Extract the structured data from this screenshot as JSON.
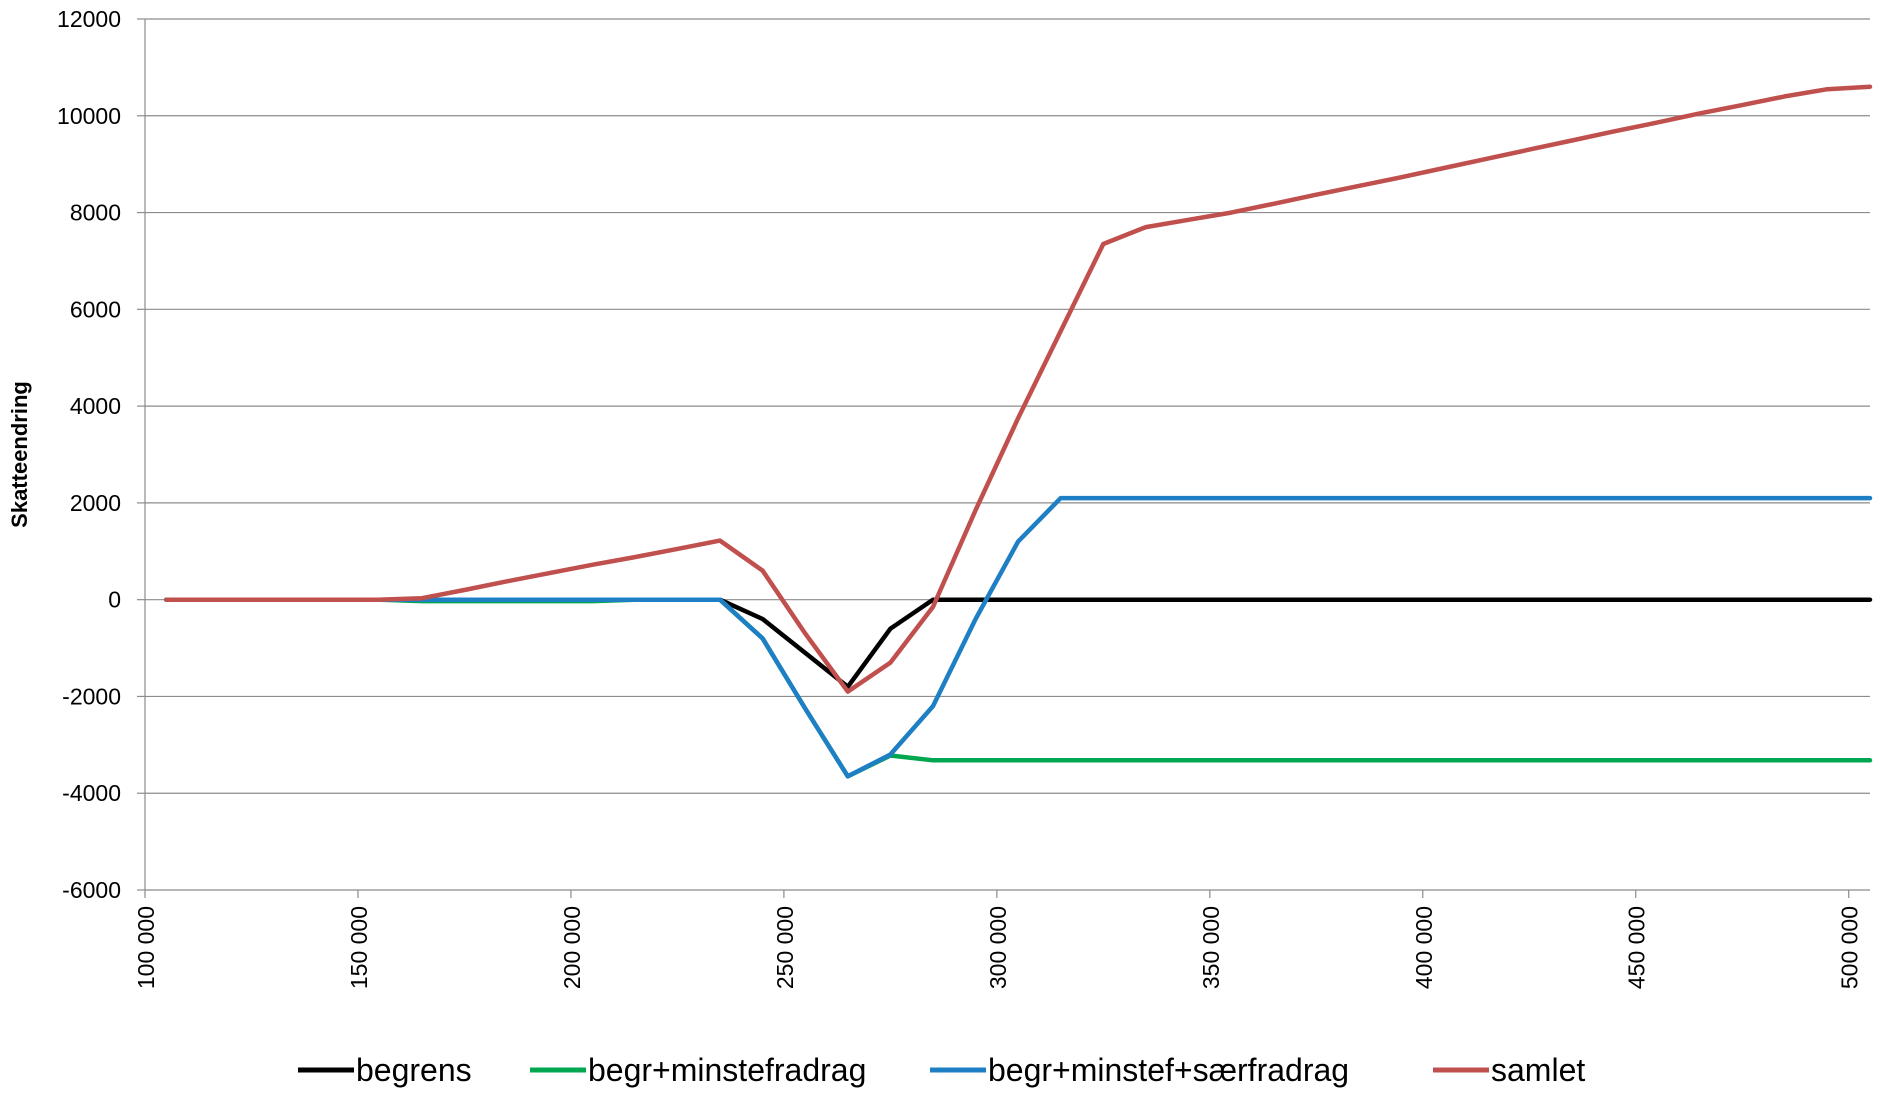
{
  "chart_data": {
    "type": "line",
    "title": "",
    "xlabel": "",
    "ylabel": "Skatteendring",
    "xlim": [
      100000,
      505000
    ],
    "ylim": [
      -6000,
      12000
    ],
    "y_ticks": [
      12000,
      10000,
      8000,
      6000,
      4000,
      2000,
      0,
      -2000,
      -4000,
      -6000
    ],
    "x_ticks": [
      100000,
      150000,
      200000,
      250000,
      300000,
      350000,
      400000,
      450000,
      500000
    ],
    "x_tick_labels": [
      "100 000",
      "150 000",
      "200 000",
      "250 000",
      "300 000",
      "350 000",
      "400 000",
      "450 000",
      "500 000"
    ],
    "grid": "horizontal",
    "legend": "bottom",
    "x": [
      105000,
      115000,
      125000,
      135000,
      145000,
      155000,
      165000,
      175000,
      185000,
      195000,
      205000,
      215000,
      225000,
      235000,
      245000,
      255000,
      265000,
      275000,
      285000,
      295000,
      305000,
      315000,
      325000,
      335000,
      345000,
      355000,
      365000,
      375000,
      385000,
      395000,
      405000,
      415000,
      425000,
      435000,
      445000,
      455000,
      465000,
      475000,
      485000,
      495000,
      505000
    ],
    "series": [
      {
        "name": "begrens",
        "color": "#000000",
        "values": [
          0,
          0,
          0,
          0,
          0,
          0,
          0,
          0,
          0,
          0,
          0,
          0,
          0,
          0,
          -400,
          -1100,
          -1800,
          -600,
          0,
          0,
          0,
          0,
          0,
          0,
          0,
          0,
          0,
          0,
          0,
          0,
          0,
          0,
          0,
          0,
          0,
          0,
          0,
          0,
          0,
          0,
          0
        ]
      },
      {
        "name": "begr+minstefradrag",
        "color": "#00a650",
        "values": [
          0,
          0,
          0,
          0,
          0,
          0,
          -30,
          -30,
          -30,
          -30,
          -30,
          0,
          0,
          0,
          -800,
          -2250,
          -3650,
          -3220,
          -3320,
          -3320,
          -3320,
          -3320,
          -3320,
          -3320,
          -3320,
          -3320,
          -3320,
          -3320,
          -3320,
          -3320,
          -3320,
          -3320,
          -3320,
          -3320,
          -3320,
          -3320,
          -3320,
          -3320,
          -3320,
          -3320,
          -3320
        ]
      },
      {
        "name": "begr+minstef+særfradrag",
        "color": "#1f7fc4",
        "values": [
          0,
          0,
          0,
          0,
          0,
          0,
          0,
          0,
          0,
          0,
          0,
          0,
          0,
          0,
          -800,
          -2250,
          -3650,
          -3200,
          -2200,
          -400,
          1200,
          2100,
          2100,
          2100,
          2100,
          2100,
          2100,
          2100,
          2100,
          2100,
          2100,
          2100,
          2100,
          2100,
          2100,
          2100,
          2100,
          2100,
          2100,
          2100,
          2100
        ]
      },
      {
        "name": "samlet",
        "color": "#c0504d",
        "values": [
          0,
          0,
          0,
          0,
          0,
          0,
          30,
          200,
          380,
          550,
          720,
          880,
          1050,
          1220,
          600,
          -700,
          -1900,
          -1300,
          -150,
          1850,
          3750,
          5550,
          7350,
          7700,
          7850,
          8000,
          8180,
          8370,
          8550,
          8730,
          8920,
          9110,
          9300,
          9490,
          9680,
          9860,
          10050,
          10220,
          10400,
          10550,
          10600
        ]
      }
    ]
  }
}
